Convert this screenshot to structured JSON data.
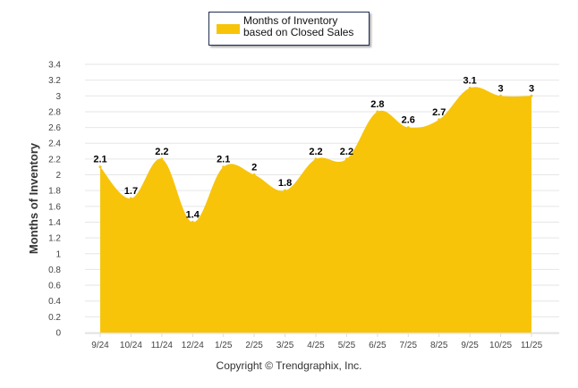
{
  "chart_data": {
    "type": "area",
    "title": "",
    "xlabel": "",
    "ylabel": "Months of Inventory",
    "categories": [
      "9/24",
      "10/24",
      "11/24",
      "12/24",
      "1/25",
      "2/25",
      "3/25",
      "4/25",
      "5/25",
      "6/25",
      "7/25",
      "8/25",
      "9/25",
      "10/25",
      "11/25"
    ],
    "series": [
      {
        "name": "Months of Inventory based on Closed Sales",
        "values": [
          2.1,
          1.7,
          2.2,
          1.4,
          2.1,
          2,
          1.8,
          2.2,
          2.2,
          2.8,
          2.6,
          2.7,
          3.1,
          3,
          3
        ],
        "color": "#f8c40a"
      }
    ],
    "yticks": [
      "0",
      "0.2",
      "0.4",
      "0.6",
      "0.8",
      "1",
      "1.2",
      "1.4",
      "1.6",
      "1.8",
      "2",
      "2.2",
      "2.4",
      "2.6",
      "2.8",
      "3",
      "3.2",
      "3.4"
    ],
    "ylim": [
      0,
      3.4
    ],
    "grid": true,
    "legend": "top-center"
  },
  "legend": {
    "label": "Months of Inventory based on Closed Sales"
  },
  "footer": {
    "copyright": "Copyright © Trendgraphix, Inc."
  }
}
